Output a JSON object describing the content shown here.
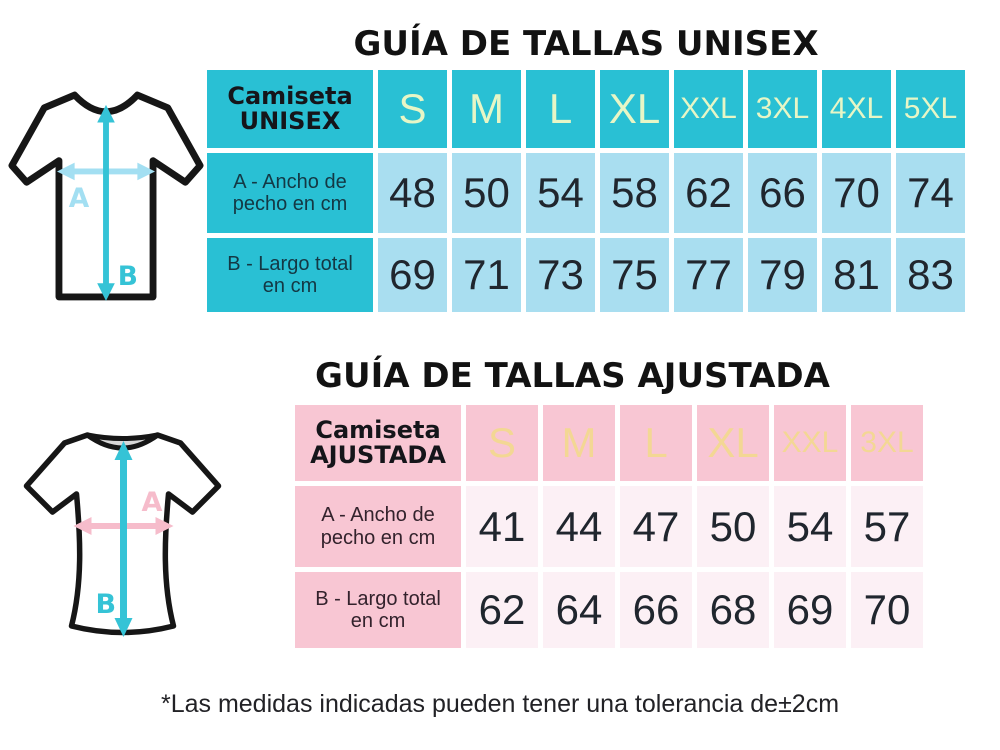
{
  "titles": {
    "unisex": "GUÍA DE TALLAS UNISEX",
    "ajustada": "GUÍA DE TALLAS AJUSTADA"
  },
  "footnote": "*Las medidas indicadas pueden tener una tolerancia de±2cm",
  "tables": {
    "unisex": {
      "header_label": [
        "Camiseta",
        "UNISEX"
      ],
      "sizes": [
        "S",
        "M",
        "L",
        "XL",
        "XXL",
        "3XL",
        "4XL",
        "5XL"
      ],
      "rows": [
        {
          "label": "A - Ancho de pecho en cm",
          "values": [
            "48",
            "50",
            "54",
            "58",
            "62",
            "66",
            "70",
            "74"
          ]
        },
        {
          "label": "B - Largo total en cm",
          "values": [
            "69",
            "71",
            "73",
            "75",
            "77",
            "79",
            "81",
            "83"
          ]
        }
      ]
    },
    "ajustada": {
      "header_label": [
        "Camiseta",
        "AJUSTADA"
      ],
      "sizes": [
        "S",
        "M",
        "L",
        "XL",
        "XXL",
        "3XL"
      ],
      "rows": [
        {
          "label": "A - Ancho de pecho en cm",
          "values": [
            "41",
            "44",
            "47",
            "50",
            "54",
            "57"
          ]
        },
        {
          "label": "B - Largo total en cm",
          "values": [
            "62",
            "64",
            "66",
            "68",
            "69",
            "70"
          ]
        }
      ]
    }
  },
  "diagrams": {
    "unisex_shirt": {
      "width_arrow_label": "A",
      "length_arrow_label": "B"
    },
    "ajustada_shirt": {
      "width_arrow_label": "A",
      "length_arrow_label": "B"
    }
  },
  "colors": {
    "teal": "#29c0d4",
    "light_blue": "#a9def0",
    "size_letter_unisex": "#e7f6c6",
    "pink": "#f8c6d3",
    "light_pink": "#fcf0f5",
    "size_letter_ajustada": "#f3d794",
    "arrow_cyan": "#35c3d6",
    "arrow_light_cyan": "#a3dff2",
    "arrow_pink": "#f6bccb"
  }
}
